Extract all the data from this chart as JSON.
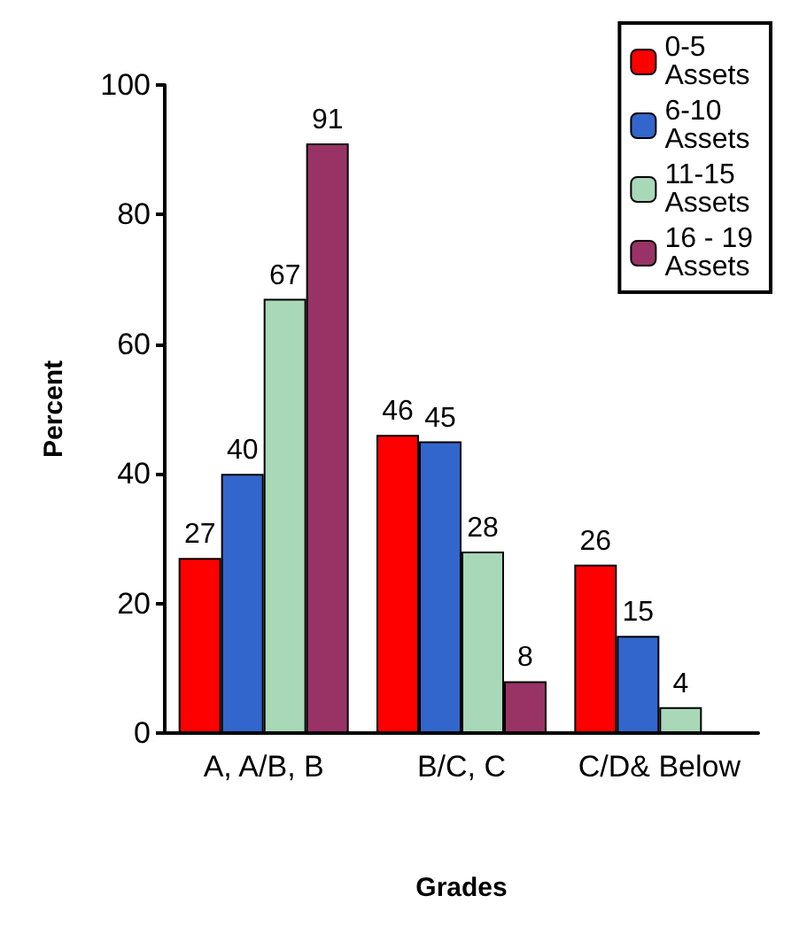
{
  "chart_data": {
    "type": "bar",
    "xlabel": "Grades",
    "ylabel": "Percent",
    "categories": [
      "A, A/B, B",
      "B/C, C",
      "C/D& Below"
    ],
    "series": [
      {
        "name": "0-5 Assets",
        "color": "#ff0000",
        "values": [
          27,
          46,
          26
        ]
      },
      {
        "name": "6-10 Assets",
        "color": "#3366cc",
        "values": [
          40,
          45,
          15
        ]
      },
      {
        "name": "11-15 Assets",
        "color": "#a8d8b8",
        "values": [
          67,
          28,
          4
        ]
      },
      {
        "name": "16 - 19 Assets",
        "color": "#993366",
        "values": [
          91,
          8,
          null
        ]
      }
    ],
    "ylim": [
      0,
      100
    ],
    "yticks": [
      0,
      20,
      40,
      60,
      80,
      100
    ],
    "grid": false,
    "legend": "top right",
    "data_labels": true
  }
}
